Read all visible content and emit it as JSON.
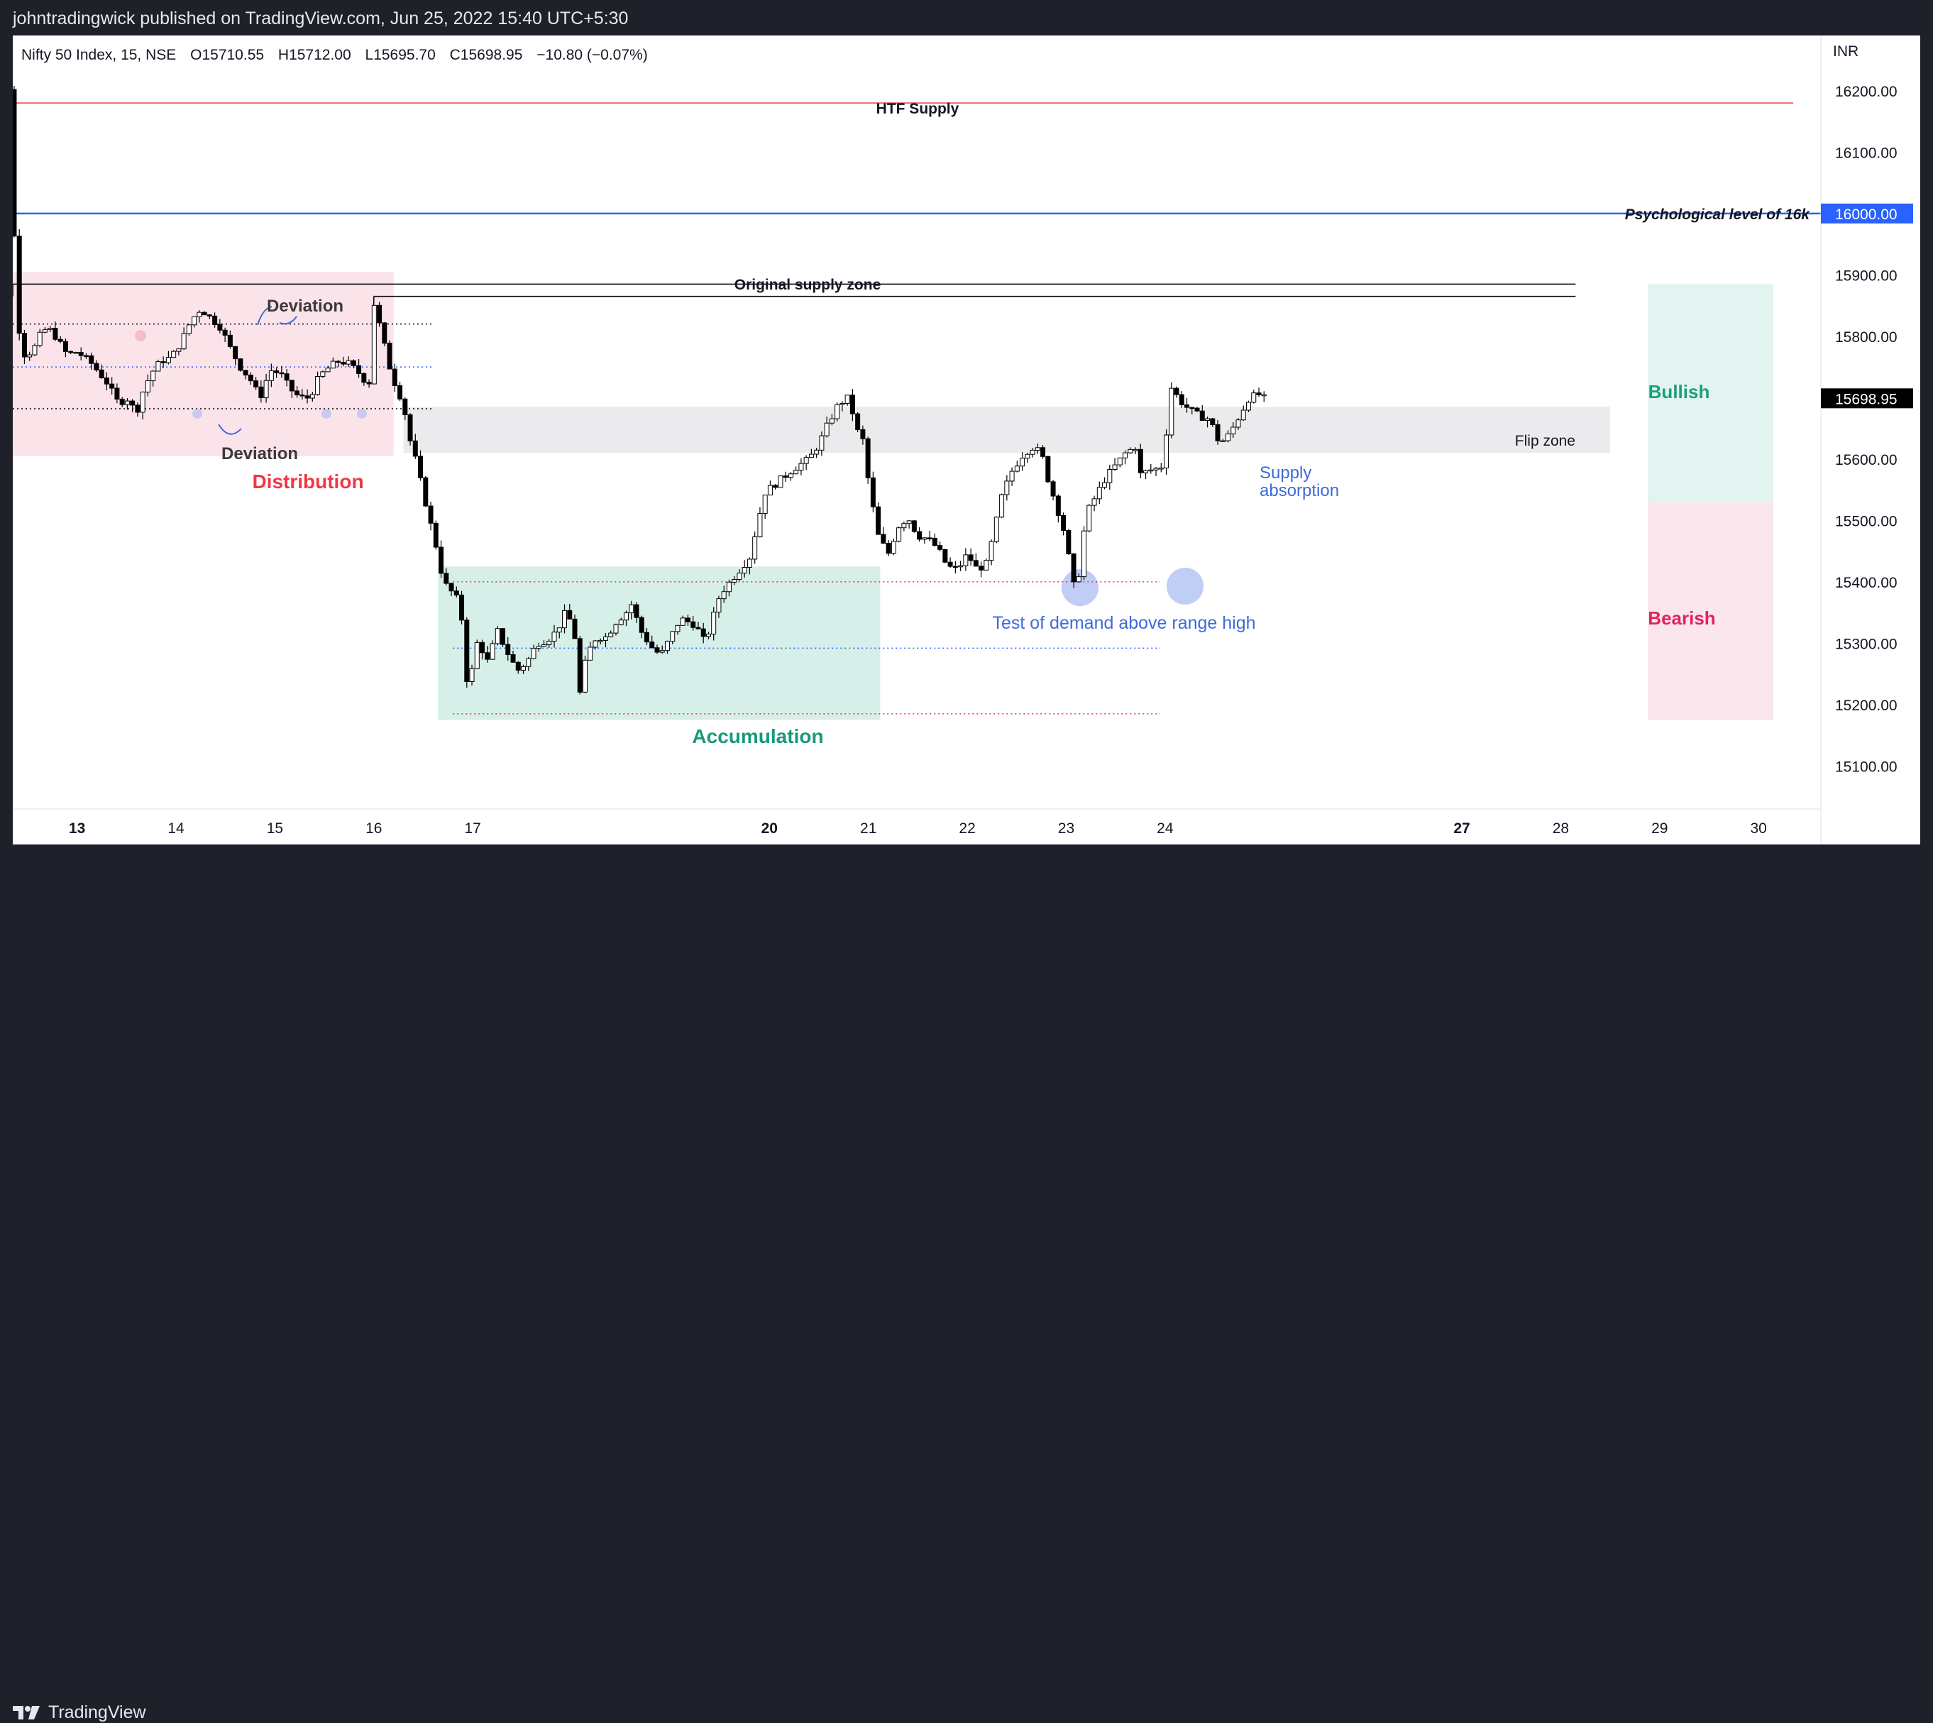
{
  "header": {
    "attribution": "johntradingwick published on TradingView.com, Jun 25, 2022 15:40 UTC+5:30"
  },
  "footer": {
    "brand": "TradingView"
  },
  "legend": {
    "symbol": "Nifty 50 Index, 15, NSE",
    "open": "O15710.55",
    "high": "H15712.00",
    "low": "L15695.70",
    "close": "C15698.95",
    "change": "−10.80 (−0.07%)"
  },
  "currency": "INR",
  "colors": {
    "background": "#ffffff",
    "frame": "#1f212a",
    "candle": "#000000",
    "htf_supply_line": "#f23645",
    "psych_level": "#2962ff",
    "distribution_zone": "#fbe3ea",
    "accumulation_zone": "#d6efe9",
    "flip_zone": "#ebebed",
    "distribution_text": "#f23645",
    "accumulation_text": "#17997a",
    "blue_annotation": "#3d6bd9",
    "bullish_fill": "#e3f3ef",
    "bearish_fill": "#fae6ec",
    "bullish_text": "#1b9e7f",
    "bearish_text": "#e0245e"
  },
  "annotations": {
    "htf_supply": "HTF Supply",
    "psych": "Psychological level of 16k",
    "original_supply": "Original supply zone",
    "deviation_top": "Deviation",
    "deviation_bottom": "Deviation",
    "distribution": "Distribution",
    "accumulation": "Accumulation",
    "flip_zone": "Flip zone",
    "supply_absorption_1": "Supply",
    "supply_absorption_2": "absorption",
    "test_demand": "Test of demand above range high",
    "bullish": "Bullish",
    "bearish": "Bearish"
  },
  "chart_data": {
    "type": "candlestick",
    "symbol": "Nifty 50 Index",
    "interval": "15",
    "exchange": "NSE",
    "y_axis": {
      "range": [
        15030,
        16290
      ],
      "ticks": [
        16200,
        16100,
        16000,
        15900,
        15800,
        15700,
        15600,
        15500,
        15400,
        15300,
        15200,
        15100
      ],
      "tick_labels": [
        "16200.00",
        "16100.00",
        "16000.00",
        "15900.00",
        "15800.00",
        "15700.00",
        "15600.00",
        "15500.00",
        "15400.00",
        "15300.00",
        "15200.00",
        "15100.00"
      ]
    },
    "x_axis": {
      "range_days": [
        12.35,
        30.63
      ],
      "ticks": [
        13,
        14,
        15,
        16,
        17,
        20,
        21,
        22,
        23,
        24,
        27,
        28,
        29,
        30
      ],
      "tick_labels": [
        "13",
        "14",
        "15",
        "16",
        "17",
        "20",
        "21",
        "22",
        "23",
        "24",
        "27",
        "28",
        "29",
        "30"
      ],
      "bold_labels": [
        "13",
        "20",
        "27"
      ]
    },
    "price_marks": [
      {
        "label": "16000.00",
        "value": 16000,
        "color": "#2962ff"
      },
      {
        "label": "15698.95",
        "value": 15698.95,
        "color": "#000000"
      }
    ],
    "levels": [
      {
        "name": "HTF Supply",
        "value": 16180,
        "from_day": 12.32,
        "to_day": 30.35,
        "color": "#f23645"
      },
      {
        "name": "Psychological level of 16k",
        "value": 16000,
        "from_day": 12.0,
        "to_day": 30.7,
        "color": "#2962ff"
      },
      {
        "name": "Original supply zone (upper)",
        "value": 15885,
        "from_day": 12.35,
        "to_day": 28.15,
        "color": "#000000"
      },
      {
        "name": "Original supply zone (lower)",
        "value": 15865,
        "from_day": 16.0,
        "to_day": 28.15,
        "color": "#000000"
      }
    ],
    "zones": [
      {
        "name": "Distribution",
        "from_day": 12.33,
        "to_day": 16.2,
        "low": 15605,
        "high": 15905
      },
      {
        "name": "Accumulation",
        "from_day": 16.65,
        "to_day": 21.12,
        "low": 15175,
        "high": 15425
      },
      {
        "name": "Flip zone",
        "from_day": 16.3,
        "to_day": 28.5,
        "low": 15610,
        "high": 15685
      },
      {
        "name": "Bullish",
        "from_day": 28.88,
        "to_day": 30.15,
        "low": 15530,
        "high": 15885
      },
      {
        "name": "Bearish",
        "from_day": 28.88,
        "to_day": 30.15,
        "low": 15175,
        "high": 15530
      }
    ],
    "dotted_levels": [
      {
        "value": 15820,
        "from_day": 12.35,
        "to_day": 16.6,
        "color": "#000000"
      },
      {
        "value": 15750,
        "from_day": 12.35,
        "to_day": 16.6,
        "color": "#2962ff"
      },
      {
        "value": 15682,
        "from_day": 12.35,
        "to_day": 16.6,
        "color": "#000000"
      },
      {
        "value": 15400,
        "from_day": 16.8,
        "to_day": 23.95,
        "color": "#f23645"
      },
      {
        "value": 15292,
        "from_day": 16.8,
        "to_day": 23.95,
        "color": "#2962ff"
      },
      {
        "value": 15185,
        "from_day": 16.8,
        "to_day": 23.95,
        "color": "#f23645"
      }
    ],
    "path": [
      [
        12.0,
        16265
      ],
      [
        12.15,
        16250
      ],
      [
        12.3,
        16210
      ],
      [
        12.35,
        16190
      ],
      [
        12.37,
        15865
      ],
      [
        12.45,
        15770
      ],
      [
        12.55,
        15775
      ],
      [
        12.62,
        15800
      ],
      [
        12.7,
        15815
      ],
      [
        12.78,
        15800
      ],
      [
        12.9,
        15770
      ],
      [
        13.0,
        15775
      ],
      [
        13.15,
        15755
      ],
      [
        13.3,
        15725
      ],
      [
        13.42,
        15690
      ],
      [
        13.5,
        15700
      ],
      [
        13.6,
        15675
      ],
      [
        13.65,
        15705
      ],
      [
        13.75,
        15740
      ],
      [
        13.85,
        15760
      ],
      [
        13.95,
        15765
      ],
      [
        14.05,
        15790
      ],
      [
        14.15,
        15825
      ],
      [
        14.25,
        15845
      ],
      [
        14.35,
        15830
      ],
      [
        14.45,
        15815
      ],
      [
        14.55,
        15780
      ],
      [
        14.65,
        15750
      ],
      [
        14.75,
        15730
      ],
      [
        14.85,
        15700
      ],
      [
        14.95,
        15745
      ],
      [
        15.05,
        15740
      ],
      [
        15.15,
        15715
      ],
      [
        15.25,
        15700
      ],
      [
        15.35,
        15700
      ],
      [
        15.45,
        15735
      ],
      [
        15.55,
        15750
      ],
      [
        15.65,
        15760
      ],
      [
        15.75,
        15755
      ],
      [
        15.85,
        15740
      ],
      [
        15.95,
        15720
      ],
      [
        16.0,
        15855
      ],
      [
        16.07,
        15810
      ],
      [
        16.15,
        15755
      ],
      [
        16.22,
        15720
      ],
      [
        16.3,
        15690
      ],
      [
        16.35,
        15640
      ],
      [
        16.42,
        15600
      ],
      [
        16.5,
        15545
      ],
      [
        16.58,
        15490
      ],
      [
        16.65,
        15445
      ],
      [
        16.7,
        15400
      ],
      [
        16.78,
        15385
      ],
      [
        16.85,
        15370
      ],
      [
        16.9,
        15330
      ],
      [
        16.95,
        15220
      ],
      [
        17.05,
        15305
      ],
      [
        17.15,
        15270
      ],
      [
        17.25,
        15320
      ],
      [
        17.35,
        15285
      ],
      [
        17.45,
        15255
      ],
      [
        17.55,
        15270
      ],
      [
        17.65,
        15300
      ],
      [
        17.75,
        15305
      ],
      [
        17.85,
        15320
      ],
      [
        17.95,
        15355
      ],
      [
        18.05,
        15300
      ],
      [
        18.08,
        15215
      ],
      [
        18.15,
        15280
      ],
      [
        18.25,
        15310
      ],
      [
        18.35,
        15310
      ],
      [
        18.45,
        15335
      ],
      [
        18.55,
        15350
      ],
      [
        18.6,
        15365
      ],
      [
        18.7,
        15320
      ],
      [
        18.8,
        15295
      ],
      [
        18.9,
        15280
      ],
      [
        19.0,
        15310
      ],
      [
        19.1,
        15340
      ],
      [
        19.25,
        15330
      ],
      [
        19.35,
        15300
      ],
      [
        19.5,
        15380
      ],
      [
        19.65,
        15410
      ],
      [
        19.8,
        15440
      ],
      [
        19.95,
        15545
      ],
      [
        20.1,
        15565
      ],
      [
        20.25,
        15585
      ],
      [
        20.4,
        15600
      ],
      [
        20.5,
        15625
      ],
      [
        20.6,
        15660
      ],
      [
        20.7,
        15690
      ],
      [
        20.8,
        15700
      ],
      [
        20.9,
        15640
      ],
      [
        20.97,
        15625
      ],
      [
        21.0,
        15560
      ],
      [
        21.1,
        15475
      ],
      [
        21.2,
        15445
      ],
      [
        21.3,
        15490
      ],
      [
        21.4,
        15505
      ],
      [
        21.5,
        15475
      ],
      [
        21.6,
        15470
      ],
      [
        21.7,
        15455
      ],
      [
        21.8,
        15425
      ],
      [
        21.9,
        15420
      ],
      [
        22.0,
        15445
      ],
      [
        22.1,
        15420
      ],
      [
        22.2,
        15430
      ],
      [
        22.35,
        15540
      ],
      [
        22.45,
        15580
      ],
      [
        22.55,
        15605
      ],
      [
        22.65,
        15620
      ],
      [
        22.75,
        15610
      ],
      [
        22.82,
        15565
      ],
      [
        22.9,
        15525
      ],
      [
        23.0,
        15470
      ],
      [
        23.05,
        15410
      ],
      [
        23.1,
        15380
      ],
      [
        23.15,
        15440
      ],
      [
        23.2,
        15510
      ],
      [
        23.3,
        15540
      ],
      [
        23.4,
        15570
      ],
      [
        23.5,
        15590
      ],
      [
        23.6,
        15610
      ],
      [
        23.7,
        15620
      ],
      [
        23.75,
        15575
      ],
      [
        23.82,
        15580
      ],
      [
        23.9,
        15585
      ],
      [
        23.95,
        15580
      ],
      [
        24.0,
        15620
      ],
      [
        24.05,
        15720
      ],
      [
        24.15,
        15695
      ],
      [
        24.25,
        15680
      ],
      [
        24.35,
        15670
      ],
      [
        24.45,
        15665
      ],
      [
        24.55,
        15625
      ],
      [
        24.65,
        15640
      ],
      [
        24.75,
        15670
      ],
      [
        24.85,
        15700
      ],
      [
        24.95,
        15705
      ],
      [
        25.0,
        15698.95
      ]
    ]
  }
}
